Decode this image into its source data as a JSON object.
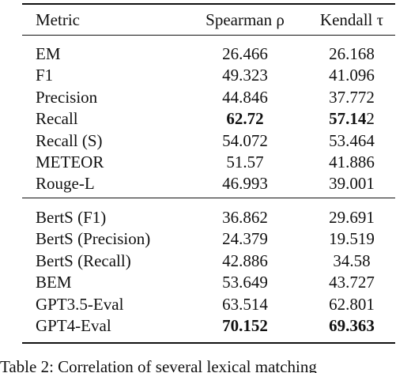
{
  "table": {
    "header": [
      "Metric",
      "Spearman ρ",
      "Kendall τ"
    ],
    "groups": [
      [
        [
          "EM",
          "26.466",
          "26.168"
        ],
        [
          "F1",
          "49.323",
          "41.096"
        ],
        [
          "Precision",
          "44.846",
          "37.772"
        ],
        [
          "Recall",
          {
            "text": "62.72",
            "bold": true
          },
          {
            "parts": [
              {
                "text": "57.14",
                "bold": true
              },
              {
                "text": "2",
                "bold": false
              }
            ]
          }
        ],
        [
          "Recall (S)",
          "54.072",
          "53.464"
        ],
        [
          "METEOR",
          "51.57",
          "41.886"
        ],
        [
          "Rouge-L",
          "46.993",
          "39.001"
        ]
      ],
      [
        [
          "BertS (F1)",
          "36.862",
          "29.691"
        ],
        [
          "BertS (Precision)",
          "24.379",
          "19.519"
        ],
        [
          "BertS (Recall)",
          "42.886",
          "34.58"
        ],
        [
          "BEM",
          "53.649",
          "43.727"
        ],
        [
          "GPT3.5-Eval",
          "63.514",
          "62.801"
        ],
        [
          "GPT4-Eval",
          {
            "text": "70.152",
            "bold": true
          },
          {
            "text": "69.363",
            "bold": true
          }
        ]
      ]
    ],
    "caption": "Table 2: Correlation of several lexical matching"
  }
}
